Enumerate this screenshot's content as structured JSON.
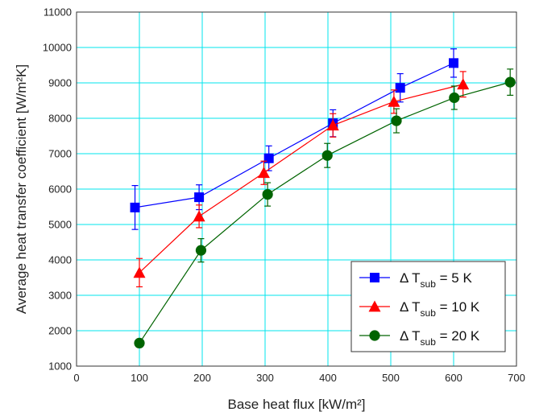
{
  "chart_data": {
    "type": "line",
    "title": "",
    "xlabel": "Base heat flux [kW/m²]",
    "ylabel": "Average heat transfer coefficient [W/m²K]",
    "xlim": [
      0,
      700
    ],
    "ylim": [
      1000,
      11000
    ],
    "xticks": [
      "0",
      "100",
      "200",
      "300",
      "400",
      "500",
      "600",
      "700"
    ],
    "yticks": [
      "1000",
      "2000",
      "3000",
      "4000",
      "5000",
      "6000",
      "7000",
      "8000",
      "9000",
      "10000",
      "11000"
    ],
    "grid": true,
    "legend_position": "bottom-right",
    "error_bars": true,
    "series": [
      {
        "name": "Δ T_sub = 5 K",
        "marker": "square",
        "color": "#0000ff",
        "x": [
          93,
          195,
          306,
          408,
          515,
          600
        ],
        "y": [
          5480,
          5770,
          6870,
          7860,
          8860,
          9560
        ],
        "err": [
          620,
          350,
          350,
          380,
          400,
          400
        ]
      },
      {
        "name": "Δ T_sub = 10 K",
        "marker": "triangle",
        "color": "#ff0000",
        "x": [
          100,
          195,
          298,
          408,
          505,
          615
        ],
        "y": [
          3640,
          5230,
          6460,
          7800,
          8470,
          8960
        ],
        "err": [
          400,
          320,
          330,
          330,
          330,
          360
        ]
      },
      {
        "name": "Δ T_sub = 20 K",
        "marker": "circle",
        "color": "#006400",
        "x": [
          100,
          198,
          304,
          399,
          509,
          601,
          690
        ],
        "y": [
          1650,
          4270,
          5850,
          6950,
          7930,
          8580,
          9020
        ],
        "err": [
          0,
          330,
          330,
          340,
          340,
          330,
          370
        ]
      }
    ]
  },
  "legend": {
    "items": [
      {
        "prefix": "Δ T",
        "sub": "sub",
        "suffix": " = 5 K"
      },
      {
        "prefix": "Δ T",
        "sub": "sub",
        "suffix": " = 10 K"
      },
      {
        "prefix": "Δ T",
        "sub": "sub",
        "suffix": " = 20 K"
      }
    ]
  },
  "colors": {
    "grid": "#00e5ee",
    "axis": "#333333"
  }
}
